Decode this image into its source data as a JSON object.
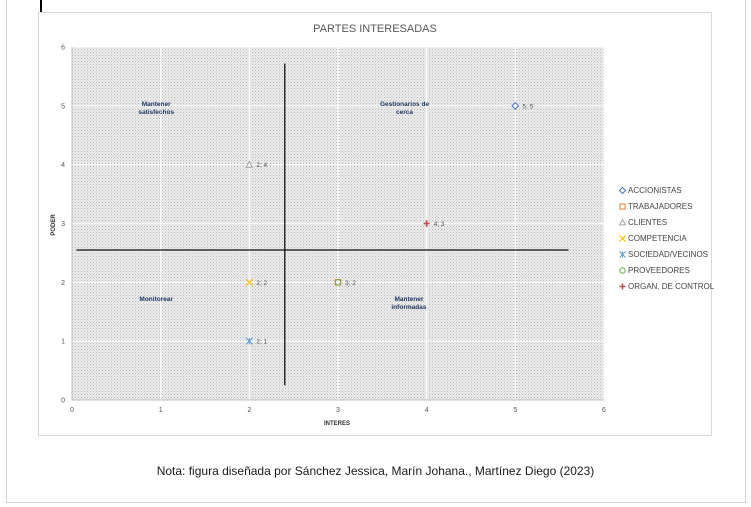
{
  "chart_data": {
    "type": "scatter",
    "title": "PARTES INTERESADAS",
    "xlabel": "INTERES",
    "ylabel": "PODER",
    "xlim": [
      0,
      6
    ],
    "ylim": [
      0,
      6
    ],
    "x_ticks": [
      "0",
      "1",
      "2",
      "3",
      "4",
      "5",
      "6"
    ],
    "y_ticks": [
      "0",
      "1",
      "2",
      "3",
      "4",
      "5",
      "6"
    ],
    "grid": true,
    "legend_position": "right",
    "series": [
      {
        "name": "ACCIONISTAS",
        "marker": "diamond",
        "color": "#4472c4",
        "x": 5,
        "y": 5,
        "label": "5; 5"
      },
      {
        "name": "TRABAJADORES",
        "marker": "square",
        "color": "#ed7d31",
        "x": 3,
        "y": 2,
        "label": "3; 2"
      },
      {
        "name": "CLIENTES",
        "marker": "triangle",
        "color": "#a5a5a5",
        "x": 2,
        "y": 4,
        "label": "2; 4"
      },
      {
        "name": "COMPETENCIA",
        "marker": "x",
        "color": "#ffc000",
        "x": 2,
        "y": 2,
        "label": "2; 2"
      },
      {
        "name": "SOCIEDAD/VECINOS",
        "marker": "star",
        "color": "#5b9bd5",
        "x": 2,
        "y": 1,
        "label": "2; 1"
      },
      {
        "name": "PROVEEDORES",
        "marker": "circle",
        "color": "#70ad47",
        "x": 3,
        "y": 2,
        "label": ""
      },
      {
        "name": "ORGAN. DE CONTROL",
        "marker": "plus",
        "color": "#c0504d",
        "x": 4,
        "y": 3,
        "label": "4; 3"
      }
    ],
    "annotations": [
      {
        "lines": [
          "Mantener",
          "satisfechos"
        ],
        "x": 0.95,
        "y": 4.9
      },
      {
        "lines": [
          "Gestionarios de",
          "cerca"
        ],
        "x": 5.5,
        "y": 4.9
      },
      {
        "lines": [
          "Monitorear"
        ],
        "x": 0.95,
        "y": 1.6
      },
      {
        "lines": [
          "Mantener",
          "informadas"
        ],
        "x": 5.5,
        "y": 1.6
      }
    ],
    "quadrant_lines": {
      "vertical_x": 2.4,
      "horizontal_y": 2.55
    }
  },
  "caption": "Nota: figura diseñada por Sánchez Jessica, Marín Johana., Martínez Diego (2023)"
}
